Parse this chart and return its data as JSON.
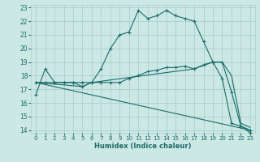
{
  "xlabel": "Humidex (Indice chaleur)",
  "bg_color": "#cce8e4",
  "grid_color": "#aacfcc",
  "line_color": "#1a6b6b",
  "xlim": [
    -0.5,
    23.5
  ],
  "ylim": [
    13.8,
    23.2
  ],
  "yticks": [
    14,
    15,
    16,
    17,
    18,
    19,
    20,
    21,
    22,
    23
  ],
  "xticks": [
    0,
    1,
    2,
    3,
    4,
    5,
    6,
    7,
    8,
    9,
    10,
    11,
    12,
    13,
    14,
    15,
    16,
    17,
    18,
    19,
    20,
    21,
    22,
    23
  ],
  "series1_x": [
    0,
    1,
    2,
    3,
    4,
    5,
    6,
    7,
    8,
    9,
    10,
    11,
    12,
    13,
    14,
    15,
    16,
    17,
    18,
    19,
    20,
    21,
    22,
    23
  ],
  "series1_y": [
    16.6,
    18.5,
    17.5,
    17.5,
    17.5,
    17.5,
    17.5,
    18.5,
    20.0,
    21.0,
    21.2,
    22.8,
    22.2,
    22.4,
    22.8,
    22.4,
    22.2,
    22.0,
    20.5,
    19.0,
    19.0,
    16.8,
    14.3,
    13.8
  ],
  "series2_x": [
    0,
    1,
    2,
    3,
    4,
    5,
    6,
    7,
    8,
    9,
    10,
    11,
    12,
    13,
    14,
    15,
    16,
    17,
    18,
    19,
    20,
    21,
    22,
    23
  ],
  "series2_y": [
    17.5,
    17.5,
    17.5,
    17.5,
    17.5,
    17.2,
    17.5,
    17.5,
    17.5,
    17.5,
    17.8,
    18.0,
    18.3,
    18.4,
    18.6,
    18.6,
    18.7,
    18.5,
    18.8,
    19.0,
    17.8,
    14.5,
    14.3,
    14.0
  ],
  "series3_x": [
    0,
    23
  ],
  "series3_y": [
    17.5,
    14.0
  ],
  "series4_x": [
    0,
    5,
    6,
    17,
    19,
    20,
    21,
    22,
    23
  ],
  "series4_y": [
    17.5,
    17.2,
    17.5,
    18.5,
    19.0,
    19.0,
    18.0,
    14.5,
    14.2
  ]
}
